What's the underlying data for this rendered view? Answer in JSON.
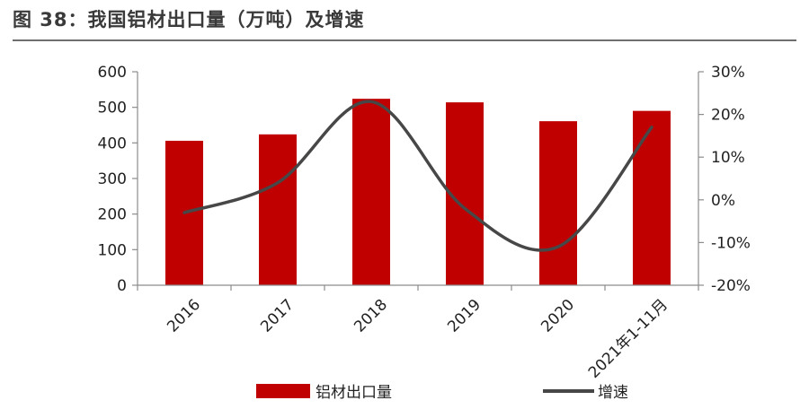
{
  "title": "图 38：我国铝材出口量（万吨）及增速",
  "chart_data": {
    "type": "bar+line",
    "categories": [
      "2016",
      "2017",
      "2018",
      "2019",
      "2020",
      "2021年1-11月"
    ],
    "series": [
      {
        "name": "铝材出口量",
        "type": "bar",
        "axis": "left",
        "color": "#c00000",
        "values": [
          406,
          424,
          524,
          514,
          461,
          490
        ]
      },
      {
        "name": "增速",
        "type": "line",
        "axis": "right",
        "color": "#474747",
        "values": [
          -3,
          4,
          23,
          -2,
          -11,
          17
        ]
      }
    ],
    "y_left": {
      "min": 0,
      "max": 600,
      "step": 100,
      "tick_labels": [
        "0",
        "100",
        "200",
        "300",
        "400",
        "500",
        "600"
      ]
    },
    "y_right": {
      "min": -20,
      "max": 30,
      "step": 10,
      "tick_labels": [
        "-20%",
        "-10%",
        "0%",
        "10%",
        "20%",
        "30%"
      ]
    },
    "legend": {
      "position": "bottom",
      "bar_label": "铝材出口量",
      "line_label": "增速"
    }
  }
}
